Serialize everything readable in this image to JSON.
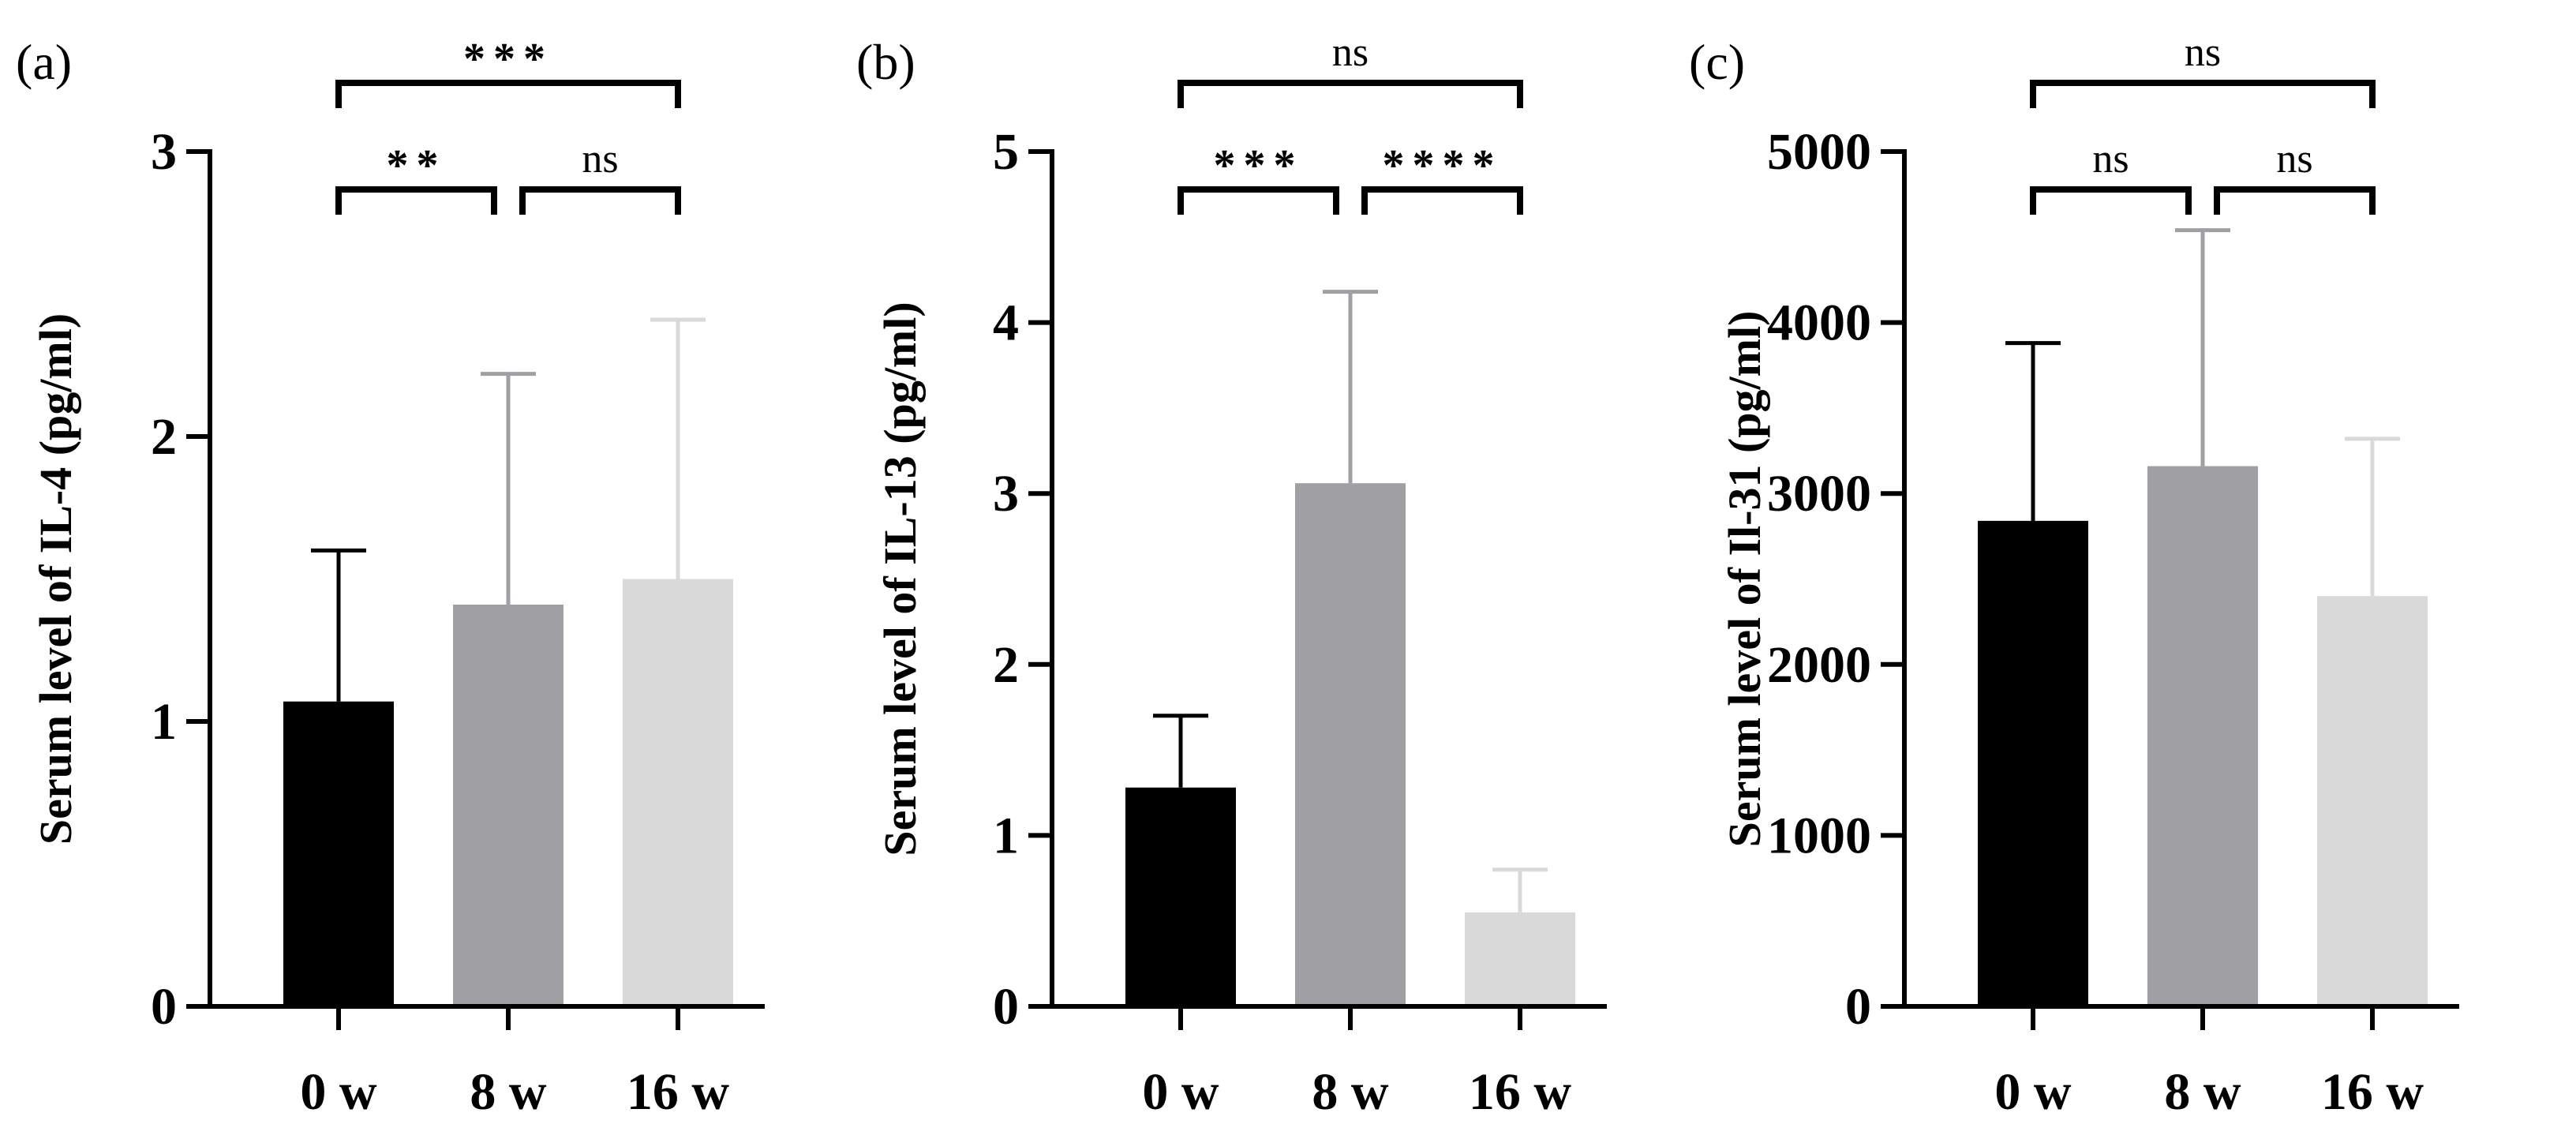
{
  "figure": {
    "domain": "Chart"
  },
  "chart_data": [
    {
      "panel": "(a)",
      "type": "bar",
      "categories": [
        "0 w",
        "8 w",
        "16 w"
      ],
      "values": [
        1.07,
        1.41,
        1.5
      ],
      "errors": [
        0.53,
        0.81,
        0.91
      ],
      "ylabel": "Serum level of IL-4 (pg/ml)",
      "ylim": [
        0,
        3
      ],
      "yticks": [
        "0",
        "1",
        "2",
        "3"
      ],
      "ytick_values": [
        0,
        1,
        2,
        3
      ],
      "bar_colors": [
        "#000000",
        "#a09fa4",
        "#d9d9d9"
      ],
      "error_colors": [
        "#000000",
        "#a09fa4",
        "#d9d9d9"
      ],
      "significance": [
        {
          "from": 0,
          "to": 1,
          "label": "**",
          "level": 0
        },
        {
          "from": 1,
          "to": 2,
          "label": "ns",
          "level": 0
        },
        {
          "from": 0,
          "to": 2,
          "label": "***",
          "level": 1
        }
      ]
    },
    {
      "panel": "(b)",
      "type": "bar",
      "categories": [
        "0 w",
        "8 w",
        "16 w"
      ],
      "values": [
        1.28,
        3.06,
        0.55
      ],
      "errors": [
        0.42,
        1.12,
        0.25
      ],
      "ylabel": "Serum level of IL-13 (pg/ml)",
      "ylim": [
        0,
        5
      ],
      "yticks": [
        "0",
        "1",
        "2",
        "3",
        "4",
        "5"
      ],
      "ytick_values": [
        0,
        1,
        2,
        3,
        4,
        5
      ],
      "bar_colors": [
        "#000000",
        "#a09fa4",
        "#d9d9d9"
      ],
      "error_colors": [
        "#000000",
        "#a09fa4",
        "#d9d9d9"
      ],
      "significance": [
        {
          "from": 0,
          "to": 1,
          "label": "***",
          "level": 0
        },
        {
          "from": 1,
          "to": 2,
          "label": "****",
          "level": 0
        },
        {
          "from": 0,
          "to": 2,
          "label": "ns",
          "level": 1
        }
      ]
    },
    {
      "panel": "(c)",
      "type": "bar",
      "categories": [
        "0 w",
        "8 w",
        "16 w"
      ],
      "values": [
        2840,
        3160,
        2400
      ],
      "errors": [
        1040,
        1380,
        920
      ],
      "ylabel": "Serum level of Il-31 (pg/ml)",
      "ylim": [
        0,
        5000
      ],
      "yticks": [
        "0",
        "1000",
        "2000",
        "3000",
        "4000",
        "5000"
      ],
      "ytick_values": [
        0,
        1000,
        2000,
        3000,
        4000,
        5000
      ],
      "bar_colors": [
        "#000000",
        "#a09fa4",
        "#d9d9d9"
      ],
      "error_colors": [
        "#000000",
        "#a09fa4",
        "#d9d9d9"
      ],
      "significance": [
        {
          "from": 0,
          "to": 1,
          "label": "ns",
          "level": 0
        },
        {
          "from": 1,
          "to": 2,
          "label": "ns",
          "level": 0
        },
        {
          "from": 0,
          "to": 2,
          "label": "ns",
          "level": 1
        }
      ]
    }
  ]
}
